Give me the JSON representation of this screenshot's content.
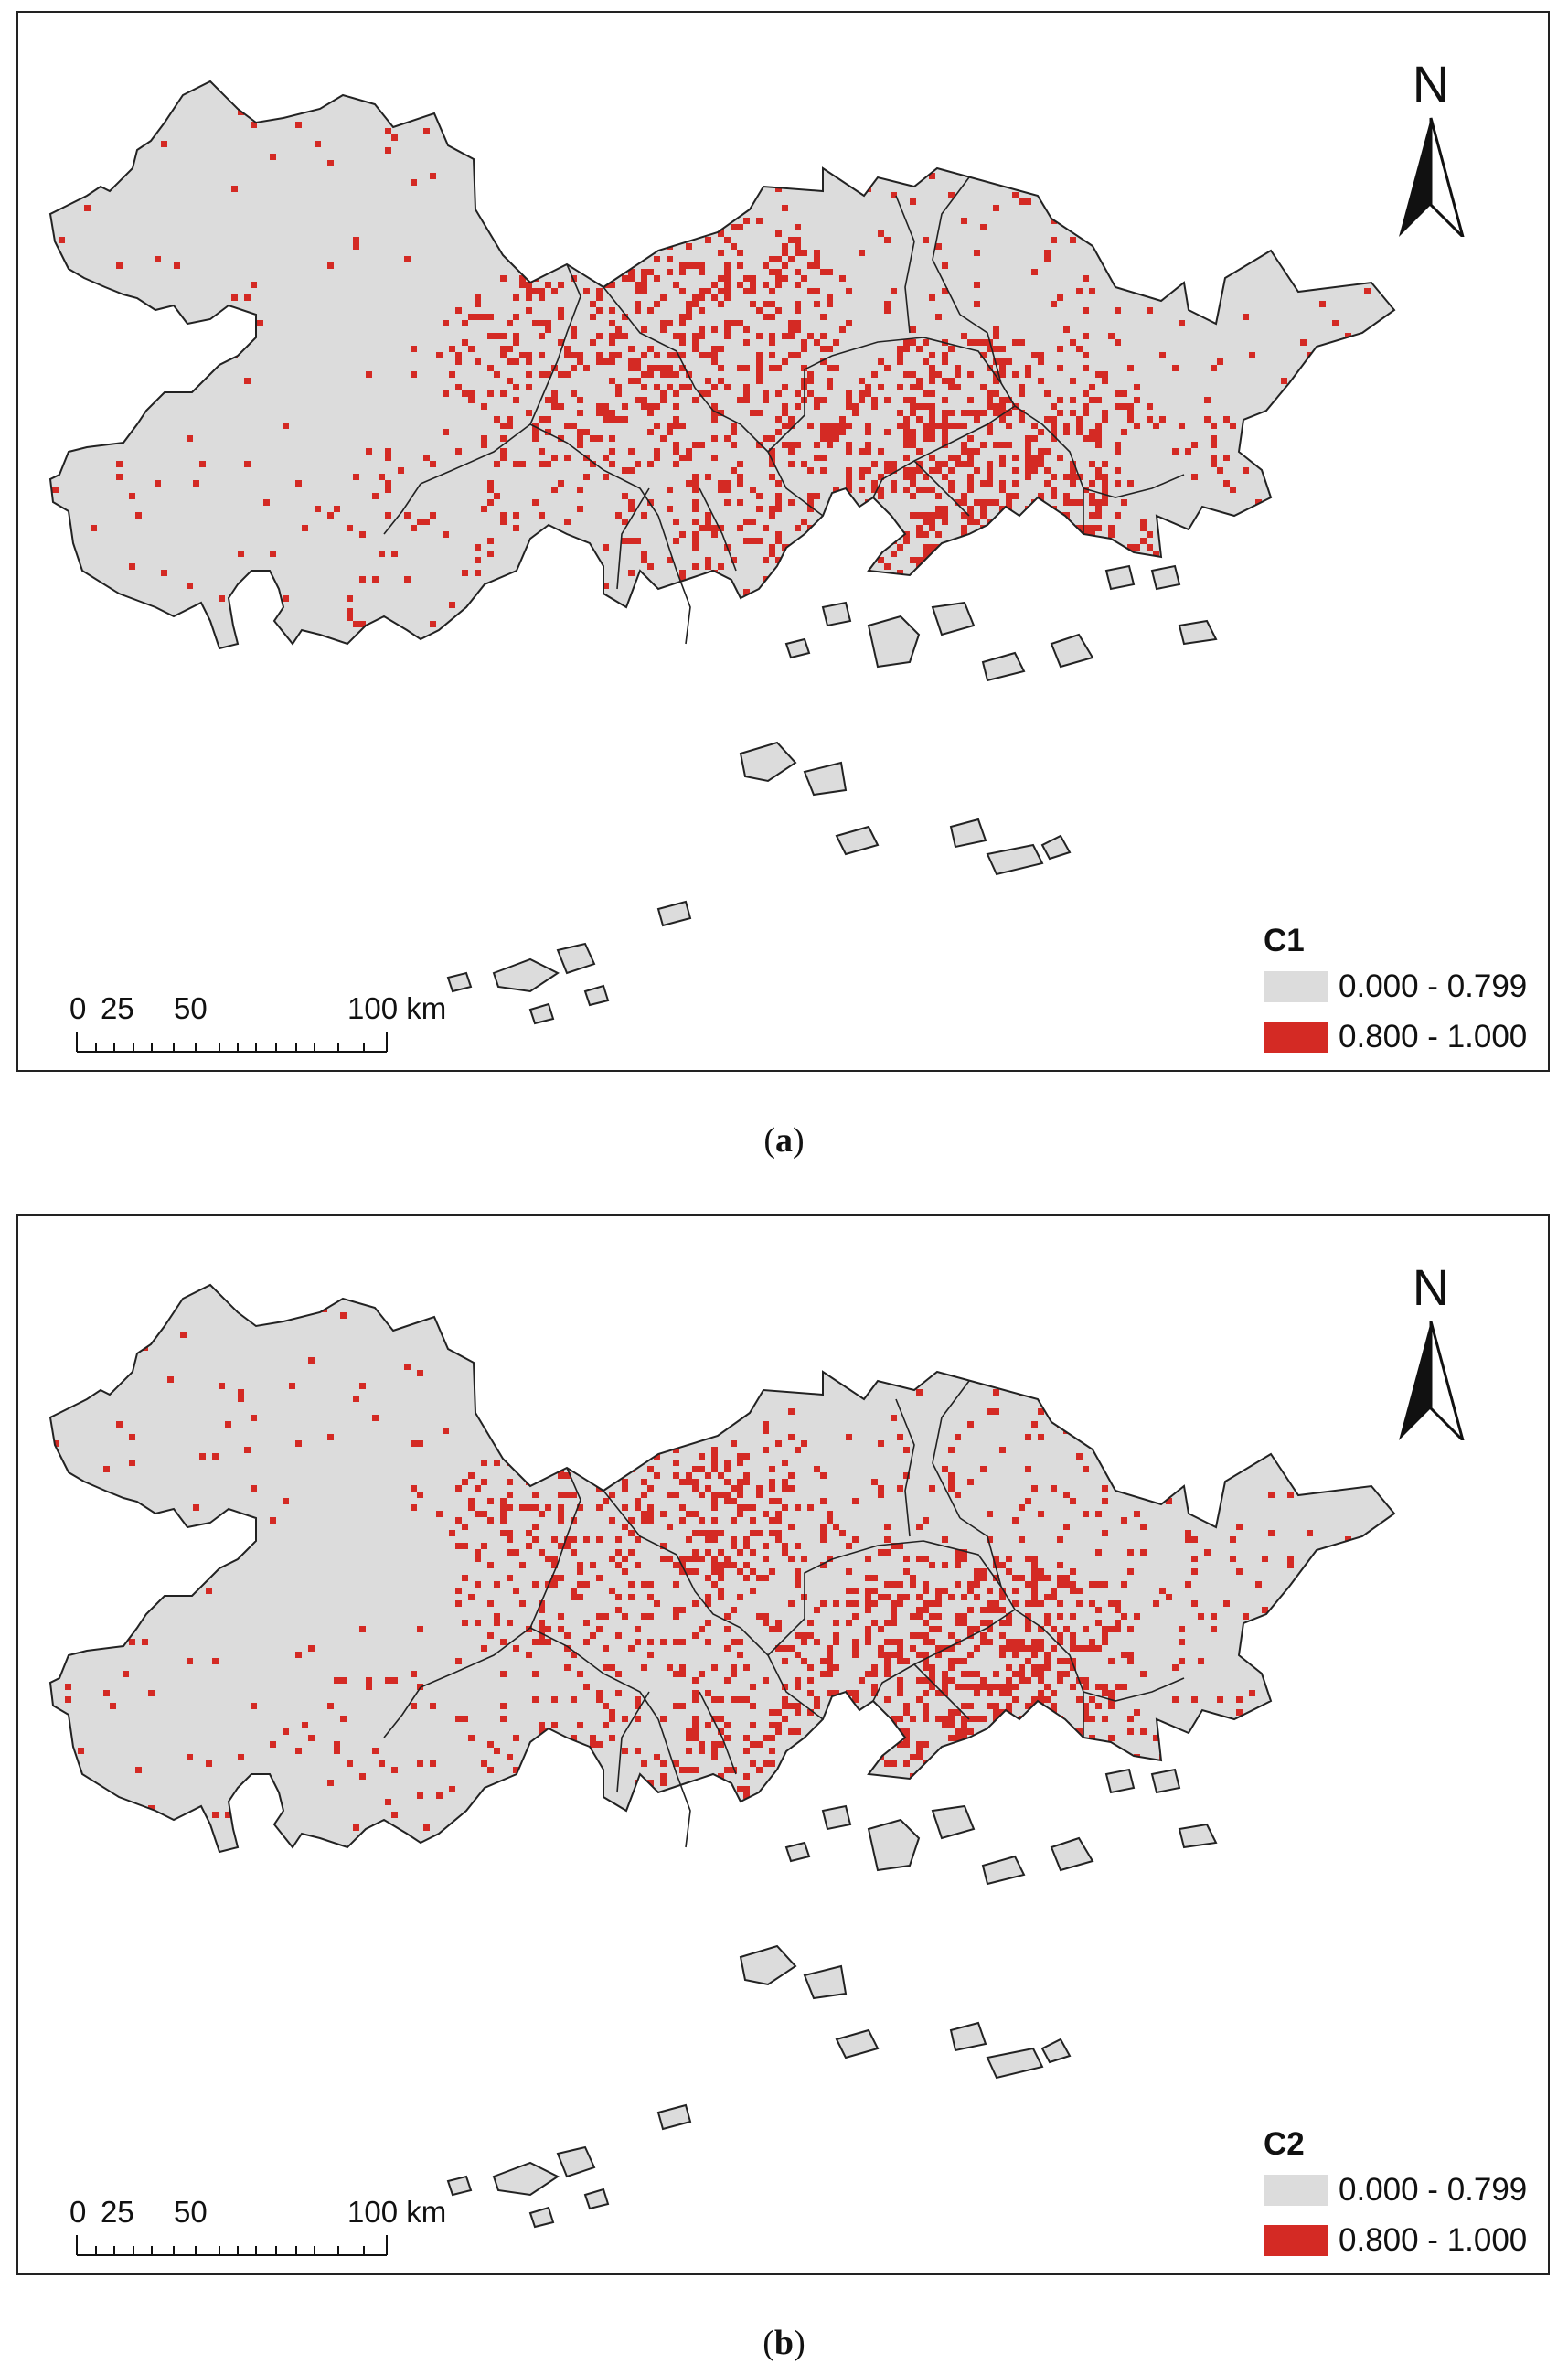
{
  "panels": [
    {
      "id": "a",
      "legend": {
        "title": "C1",
        "classes": [
          {
            "label": "0.000 - 0.799",
            "color": "#dcdcdc"
          },
          {
            "label": "0.800 - 1.000",
            "color": "#d42a24"
          }
        ]
      },
      "caption": {
        "open": "(",
        "letter": "a",
        "close": ")"
      }
    },
    {
      "id": "b",
      "legend": {
        "title": "C2",
        "classes": [
          {
            "label": "0.000 - 0.799",
            "color": "#dcdcdc"
          },
          {
            "label": "0.800 - 1.000",
            "color": "#d42a24"
          }
        ]
      },
      "caption": {
        "open": "(",
        "letter": "b",
        "close": ")"
      }
    }
  ],
  "scale_bar": {
    "labels": [
      "0",
      "25",
      "50",
      "100 km"
    ]
  },
  "north_arrow": {
    "letter": "N",
    "icon": "north-arrow-icon"
  },
  "colors": {
    "land": "#dcdcdc",
    "high": "#d42a24",
    "boundary": "#222222"
  }
}
